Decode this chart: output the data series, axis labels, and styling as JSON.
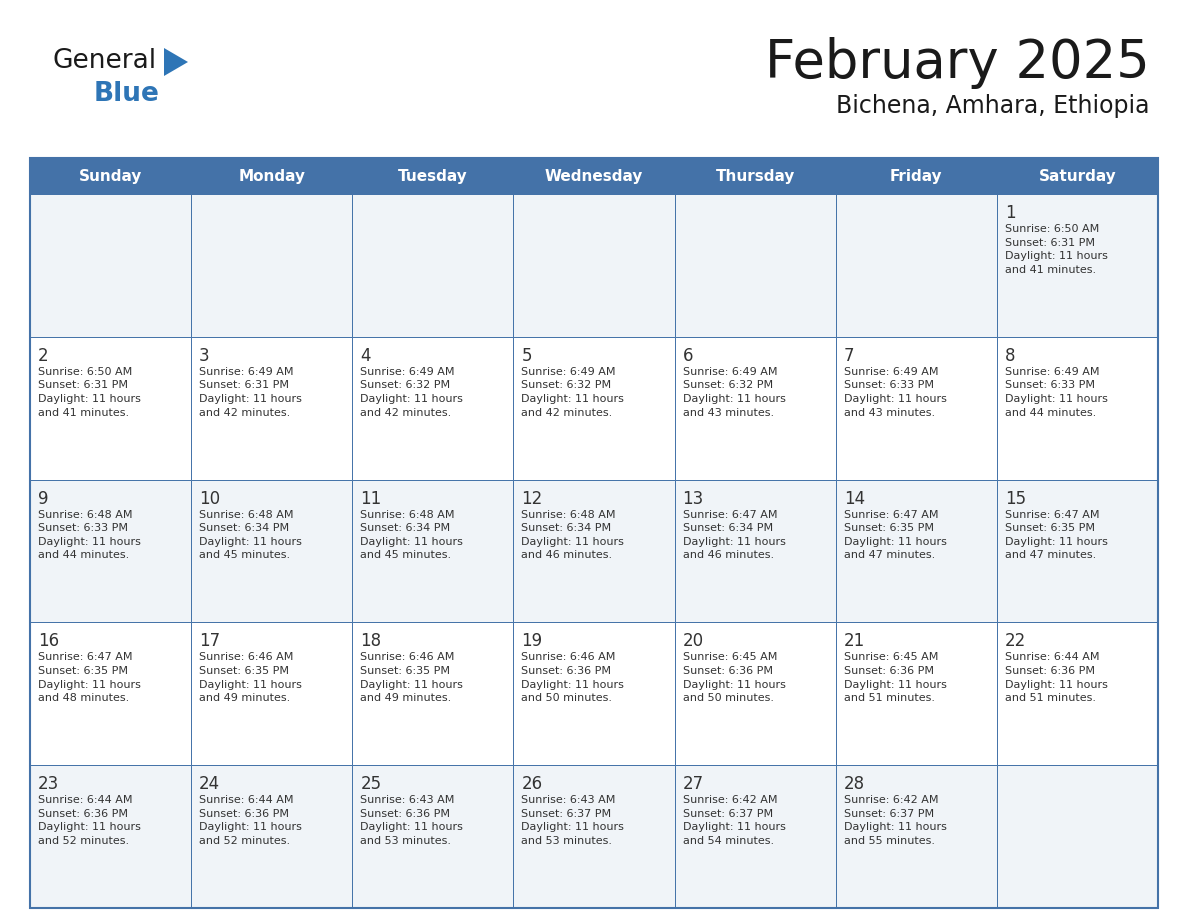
{
  "title": "February 2025",
  "subtitle": "Bichena, Amhara, Ethiopia",
  "days_of_week": [
    "Sunday",
    "Monday",
    "Tuesday",
    "Wednesday",
    "Thursday",
    "Friday",
    "Saturday"
  ],
  "header_bg": "#4472A8",
  "header_text": "#FFFFFF",
  "cell_bg_gray": "#F0F0F0",
  "cell_bg_white": "#FFFFFF",
  "grid_color": "#4472A8",
  "title_color": "#1a1a1a",
  "subtitle_color": "#1a1a1a",
  "day_num_color": "#333333",
  "text_color": "#333333",
  "logo_general_color": "#1a1a1a",
  "logo_blue_color": "#2E75B6",
  "logo_triangle_color": "#2E75B6",
  "calendar_data": [
    [
      null,
      null,
      null,
      null,
      null,
      null,
      1
    ],
    [
      2,
      3,
      4,
      5,
      6,
      7,
      8
    ],
    [
      9,
      10,
      11,
      12,
      13,
      14,
      15
    ],
    [
      16,
      17,
      18,
      19,
      20,
      21,
      22
    ],
    [
      23,
      24,
      25,
      26,
      27,
      28,
      null
    ]
  ],
  "row_bg_colors": [
    "#F0F4F8",
    "#FFFFFF",
    "#F0F4F8",
    "#FFFFFF",
    "#F0F4F8"
  ],
  "sunrise_data": {
    "1": "Sunrise: 6:50 AM\nSunset: 6:31 PM\nDaylight: 11 hours\nand 41 minutes.",
    "2": "Sunrise: 6:50 AM\nSunset: 6:31 PM\nDaylight: 11 hours\nand 41 minutes.",
    "3": "Sunrise: 6:49 AM\nSunset: 6:31 PM\nDaylight: 11 hours\nand 42 minutes.",
    "4": "Sunrise: 6:49 AM\nSunset: 6:32 PM\nDaylight: 11 hours\nand 42 minutes.",
    "5": "Sunrise: 6:49 AM\nSunset: 6:32 PM\nDaylight: 11 hours\nand 42 minutes.",
    "6": "Sunrise: 6:49 AM\nSunset: 6:32 PM\nDaylight: 11 hours\nand 43 minutes.",
    "7": "Sunrise: 6:49 AM\nSunset: 6:33 PM\nDaylight: 11 hours\nand 43 minutes.",
    "8": "Sunrise: 6:49 AM\nSunset: 6:33 PM\nDaylight: 11 hours\nand 44 minutes.",
    "9": "Sunrise: 6:48 AM\nSunset: 6:33 PM\nDaylight: 11 hours\nand 44 minutes.",
    "10": "Sunrise: 6:48 AM\nSunset: 6:34 PM\nDaylight: 11 hours\nand 45 minutes.",
    "11": "Sunrise: 6:48 AM\nSunset: 6:34 PM\nDaylight: 11 hours\nand 45 minutes.",
    "12": "Sunrise: 6:48 AM\nSunset: 6:34 PM\nDaylight: 11 hours\nand 46 minutes.",
    "13": "Sunrise: 6:47 AM\nSunset: 6:34 PM\nDaylight: 11 hours\nand 46 minutes.",
    "14": "Sunrise: 6:47 AM\nSunset: 6:35 PM\nDaylight: 11 hours\nand 47 minutes.",
    "15": "Sunrise: 6:47 AM\nSunset: 6:35 PM\nDaylight: 11 hours\nand 47 minutes.",
    "16": "Sunrise: 6:47 AM\nSunset: 6:35 PM\nDaylight: 11 hours\nand 48 minutes.",
    "17": "Sunrise: 6:46 AM\nSunset: 6:35 PM\nDaylight: 11 hours\nand 49 minutes.",
    "18": "Sunrise: 6:46 AM\nSunset: 6:35 PM\nDaylight: 11 hours\nand 49 minutes.",
    "19": "Sunrise: 6:46 AM\nSunset: 6:36 PM\nDaylight: 11 hours\nand 50 minutes.",
    "20": "Sunrise: 6:45 AM\nSunset: 6:36 PM\nDaylight: 11 hours\nand 50 minutes.",
    "21": "Sunrise: 6:45 AM\nSunset: 6:36 PM\nDaylight: 11 hours\nand 51 minutes.",
    "22": "Sunrise: 6:44 AM\nSunset: 6:36 PM\nDaylight: 11 hours\nand 51 minutes.",
    "23": "Sunrise: 6:44 AM\nSunset: 6:36 PM\nDaylight: 11 hours\nand 52 minutes.",
    "24": "Sunrise: 6:44 AM\nSunset: 6:36 PM\nDaylight: 11 hours\nand 52 minutes.",
    "25": "Sunrise: 6:43 AM\nSunset: 6:36 PM\nDaylight: 11 hours\nand 53 minutes.",
    "26": "Sunrise: 6:43 AM\nSunset: 6:37 PM\nDaylight: 11 hours\nand 53 minutes.",
    "27": "Sunrise: 6:42 AM\nSunset: 6:37 PM\nDaylight: 11 hours\nand 54 minutes.",
    "28": "Sunrise: 6:42 AM\nSunset: 6:37 PM\nDaylight: 11 hours\nand 55 minutes."
  }
}
